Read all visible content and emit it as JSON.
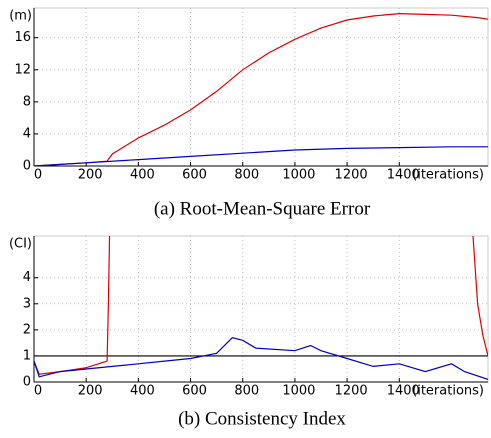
{
  "chart_data": [
    {
      "type": "line",
      "caption": "(a) Root-Mean-Square Error",
      "y_label": "(m)",
      "x_label": "(iterations)",
      "xlim": [
        0,
        1740
      ],
      "xticks": [
        0,
        200,
        400,
        600,
        800,
        1000,
        1200,
        1400
      ],
      "ylim": [
        0,
        19.7
      ],
      "yticks": [
        0,
        4,
        8,
        12,
        16
      ],
      "grid": true,
      "series": [
        {
          "name": "red",
          "color": "#e00000",
          "x": [
            0,
            100,
            200,
            280,
            300,
            400,
            500,
            600,
            700,
            800,
            900,
            1000,
            1100,
            1200,
            1300,
            1400,
            1500,
            1600,
            1700,
            1740
          ],
          "values": [
            0,
            0.2,
            0.4,
            0.6,
            1.5,
            3.5,
            5.1,
            7.0,
            9.3,
            12.0,
            14.1,
            15.8,
            17.2,
            18.2,
            18.7,
            19.0,
            18.9,
            18.8,
            18.5,
            18.3
          ]
        },
        {
          "name": "blue",
          "color": "#0000cc",
          "x": [
            0,
            200,
            400,
            600,
            800,
            1000,
            1200,
            1400,
            1600,
            1740
          ],
          "values": [
            0,
            0.4,
            0.8,
            1.2,
            1.6,
            2.0,
            2.2,
            2.3,
            2.4,
            2.4
          ]
        }
      ]
    },
    {
      "type": "line",
      "caption": "(b) Consistency Index",
      "y_label": "(CI)",
      "x_label": "(iterations)",
      "xlim": [
        0,
        1740
      ],
      "xticks": [
        0,
        200,
        400,
        600,
        800,
        1000,
        1200,
        1400
      ],
      "ylim": [
        0,
        5.6
      ],
      "yticks": [
        0,
        1,
        2,
        3,
        4
      ],
      "grid": true,
      "hline": 1,
      "series": [
        {
          "name": "red",
          "color": "#e00000",
          "x": [
            0,
            20,
            100,
            200,
            280,
            285,
            290,
            1000,
            1680,
            1700,
            1720,
            1740
          ],
          "values": [
            0.8,
            0.3,
            0.4,
            0.55,
            0.8,
            3,
            6,
            null,
            6,
            3,
            1.8,
            1
          ]
        },
        {
          "name": "blue",
          "color": "#0000cc",
          "x": [
            0,
            20,
            100,
            200,
            300,
            400,
            500,
            600,
            700,
            760,
            800,
            850,
            1000,
            1060,
            1100,
            1200,
            1300,
            1400,
            1500,
            1600,
            1650,
            1740
          ],
          "values": [
            0.8,
            0.2,
            0.4,
            0.5,
            0.6,
            0.7,
            0.8,
            0.9,
            1.1,
            1.7,
            1.6,
            1.3,
            1.2,
            1.4,
            1.2,
            0.9,
            0.6,
            0.7,
            0.4,
            0.7,
            0.4,
            0.1
          ]
        }
      ]
    }
  ]
}
